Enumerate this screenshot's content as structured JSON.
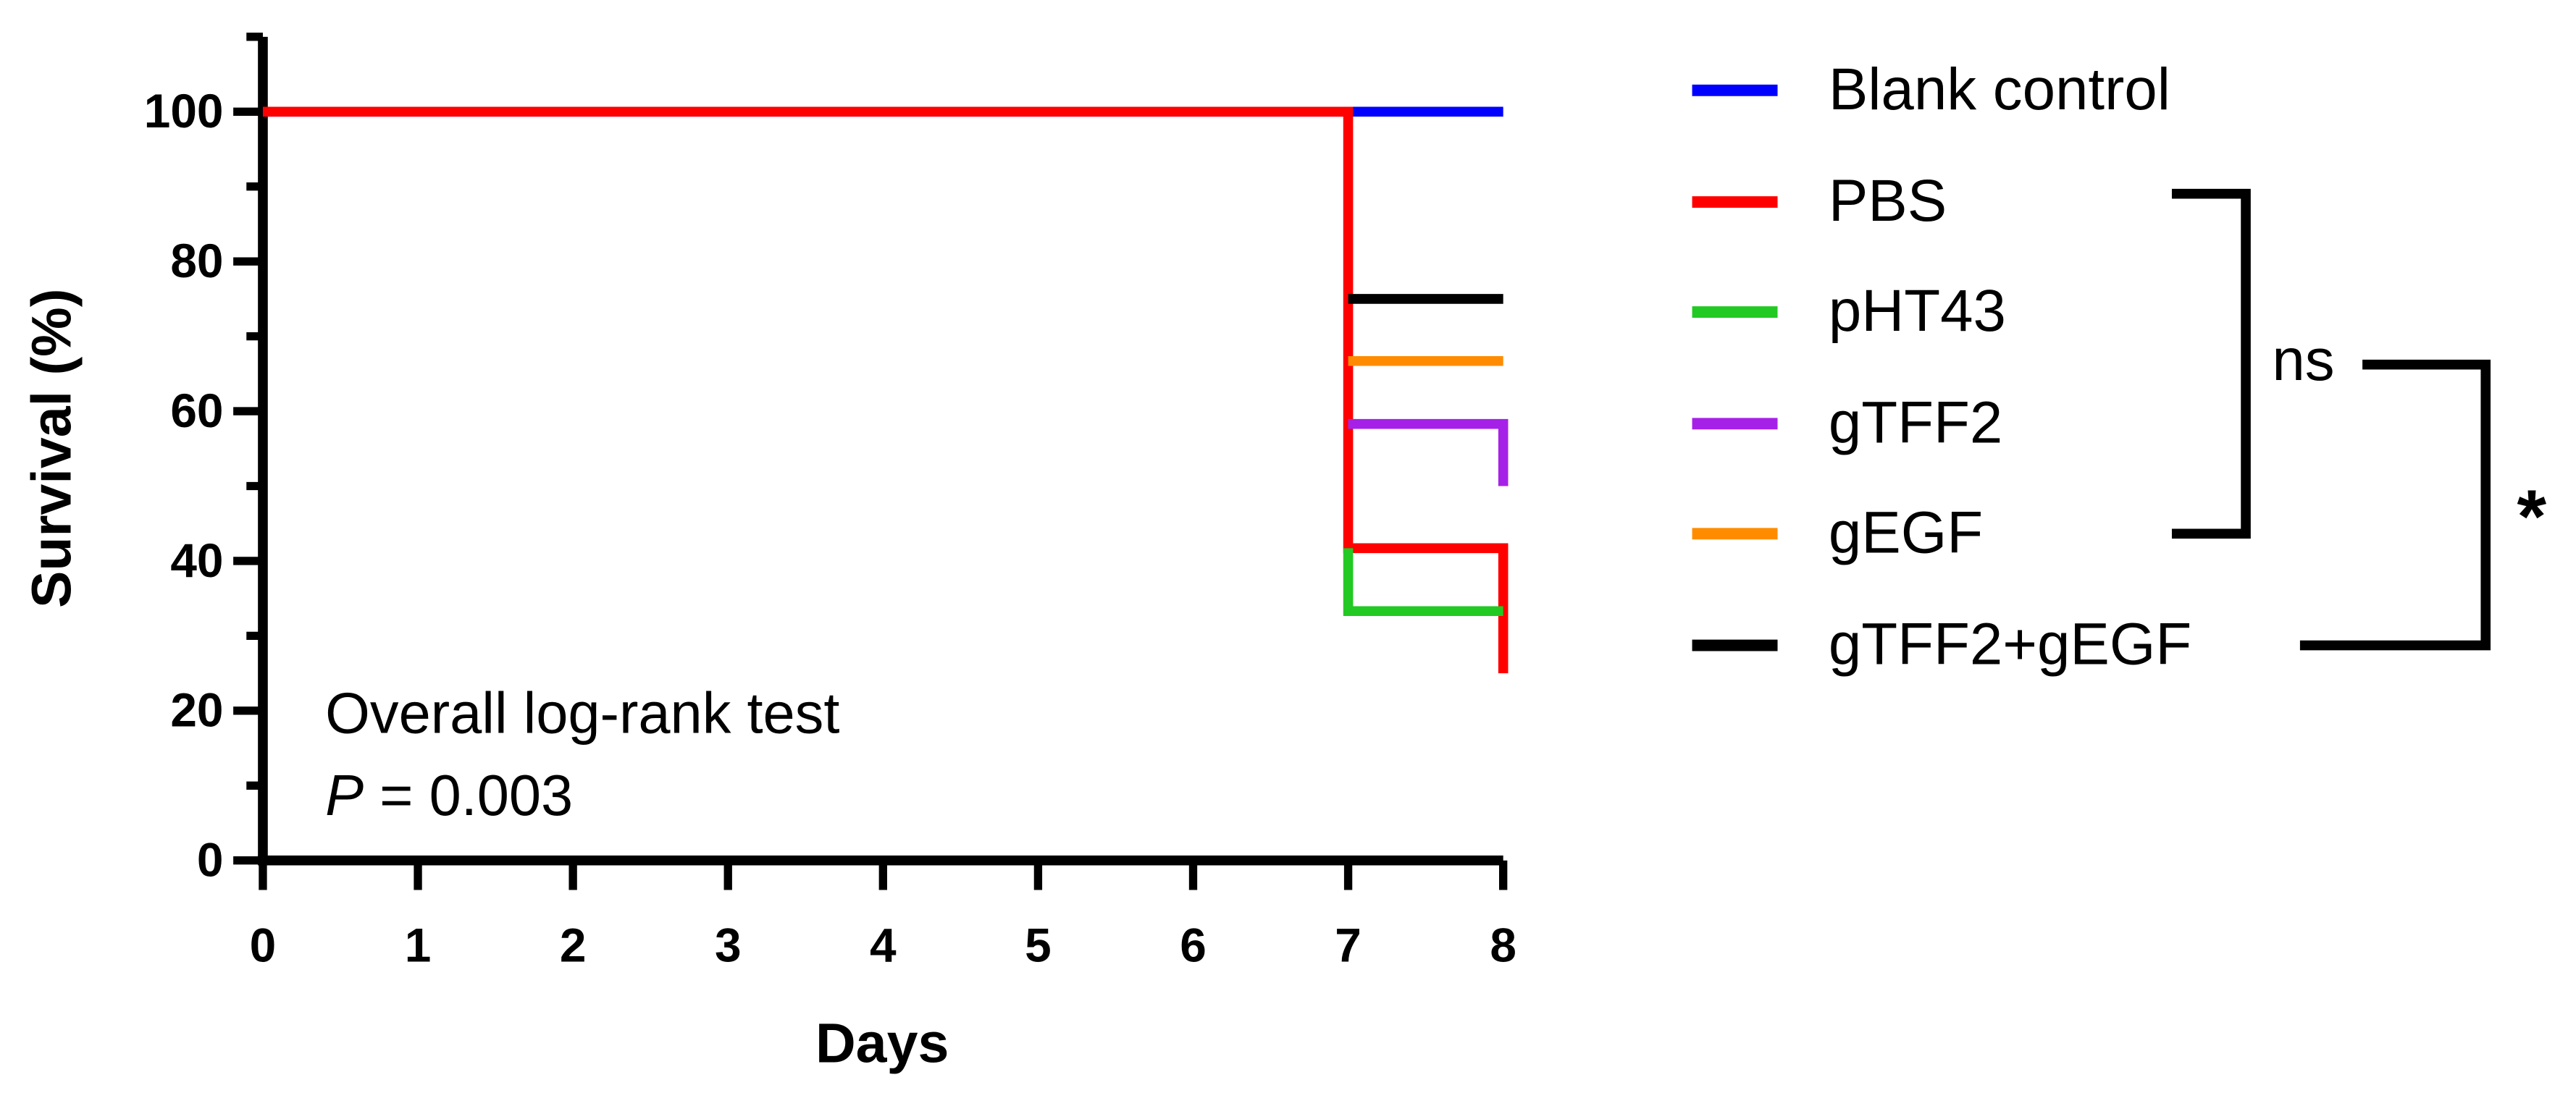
{
  "chart_data": {
    "type": "line",
    "xlabel": "Days",
    "ylabel": "Survival (%)",
    "xlim": [
      0,
      8
    ],
    "xticks": [
      0,
      1,
      2,
      3,
      4,
      5,
      6,
      7,
      8
    ],
    "ylim": [
      0,
      110
    ],
    "yticks": [
      0,
      20,
      40,
      60,
      80,
      100
    ],
    "yminor_ticks": [
      10,
      30,
      50,
      70,
      90,
      110
    ],
    "step": true,
    "series": [
      {
        "name": "Blank control",
        "color": "#0000ff",
        "x": [
          0,
          8
        ],
        "values": [
          100,
          100
        ]
      },
      {
        "name": "PBS",
        "color": "#ff0000",
        "x": [
          0,
          7,
          7,
          8,
          8
        ],
        "values": [
          100,
          100,
          41.7,
          41.7,
          25
        ]
      },
      {
        "name": "pHT43",
        "color": "#22c922",
        "x": [
          7,
          7,
          8
        ],
        "values": [
          41.7,
          33.3,
          33.3
        ]
      },
      {
        "name": "gTFF2",
        "color": "#a621e8",
        "x": [
          7,
          8,
          8
        ],
        "values": [
          58.3,
          58.3,
          50
        ]
      },
      {
        "name": "gEGF",
        "color": "#ff8c00",
        "x": [
          7,
          8
        ],
        "values": [
          66.7,
          66.7
        ]
      },
      {
        "name": "gTFF2+gEGF",
        "color": "#000000",
        "x": [
          7,
          8
        ],
        "values": [
          75,
          75
        ]
      }
    ],
    "annotation": "Overall log-rank test",
    "p_value": {
      "symbol": "P",
      "rest": " = 0.003"
    },
    "comparisons": [
      "ns",
      "*"
    ]
  }
}
